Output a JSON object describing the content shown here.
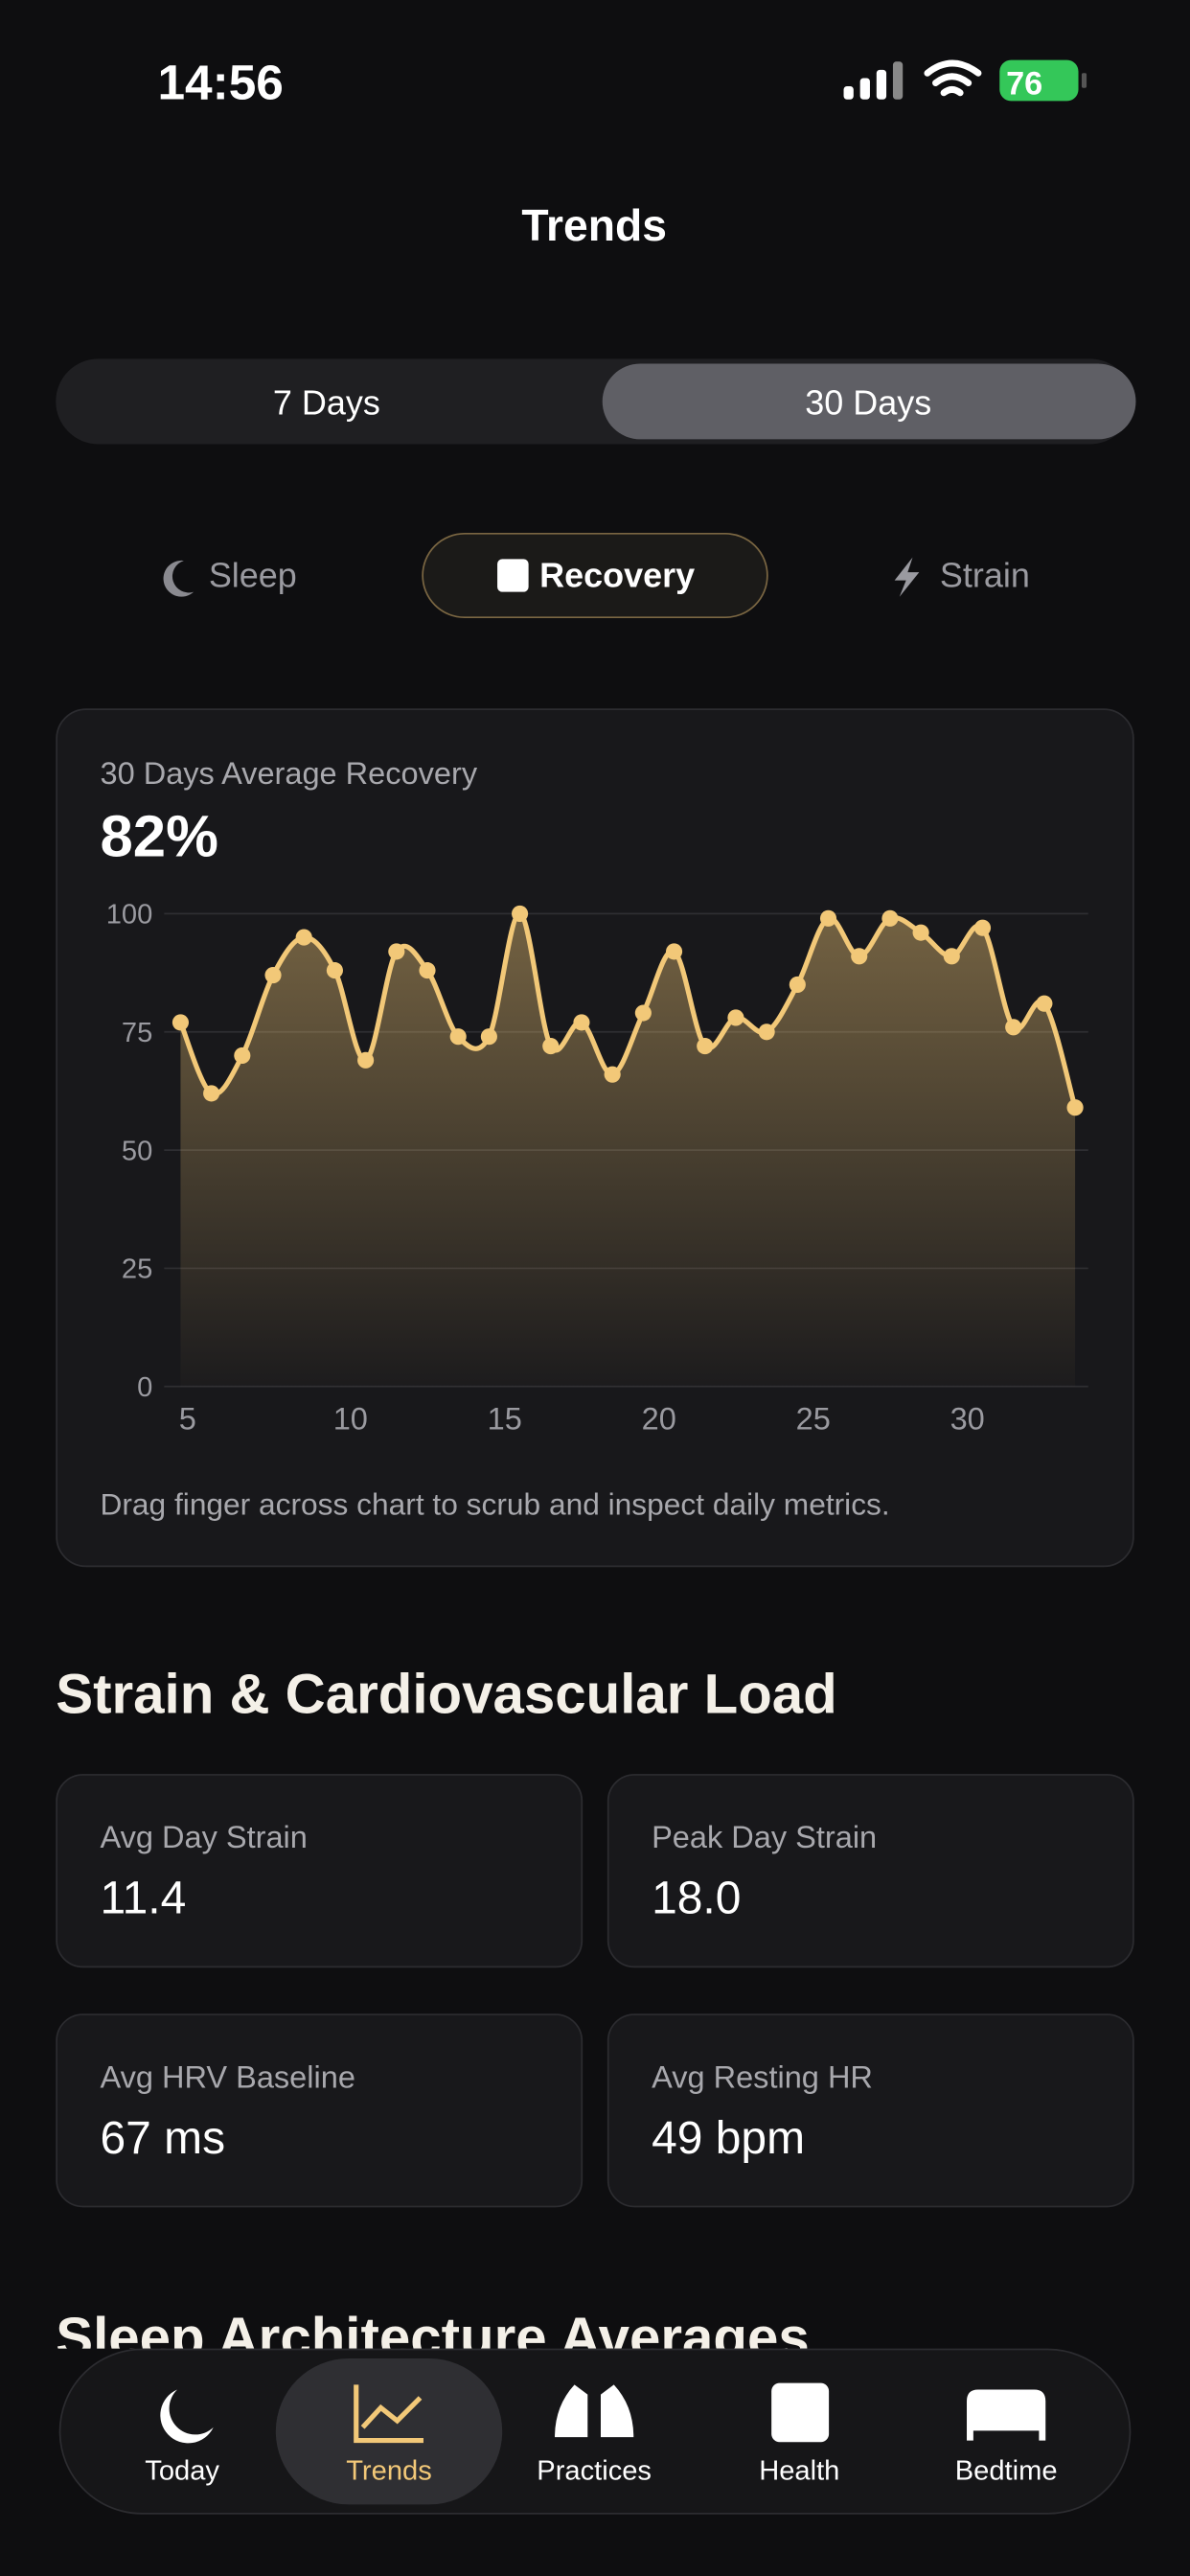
{
  "status": {
    "time": "14:56",
    "battery": "76"
  },
  "header": {
    "title": "Trends"
  },
  "range_toggle": {
    "options": [
      "7 Days",
      "30 Days"
    ],
    "selected": 1
  },
  "metric_tabs": {
    "options": [
      "Sleep",
      "Recovery",
      "Strain"
    ],
    "selected": 1
  },
  "recovery_card": {
    "label": "30 Days Average Recovery",
    "value": "82%",
    "chart": {
      "type": "line",
      "color": "#f2c878",
      "grid": true,
      "x": [
        5,
        6,
        7,
        8,
        9,
        10,
        11,
        12,
        13,
        14,
        15,
        16,
        17,
        18,
        19,
        20,
        21,
        22,
        23,
        24,
        25,
        26,
        27,
        28,
        29,
        30,
        31,
        32,
        33,
        34
      ],
      "values": [
        77,
        62,
        70,
        87,
        95,
        88,
        69,
        92,
        88,
        74,
        74,
        100,
        72,
        77,
        66,
        79,
        92,
        72,
        78,
        75,
        85,
        99,
        91,
        99,
        96,
        91,
        97,
        76,
        81,
        59
      ],
      "xlim": [
        5,
        34
      ],
      "ylim": [
        0,
        100
      ],
      "xticks": [
        5,
        10,
        15,
        20,
        25,
        30
      ],
      "yticks": [
        0,
        25,
        50,
        75,
        100
      ]
    },
    "hint": "Drag finger across chart to scrub and inspect daily metrics."
  },
  "strain_section": {
    "title": "Strain & Cardiovascular Load",
    "stats": [
      {
        "label": "Avg Day Strain",
        "value": "11.4"
      },
      {
        "label": "Peak Day Strain",
        "value": "18.0"
      },
      {
        "label": "Avg HRV Baseline",
        "value": "67 ms"
      },
      {
        "label": "Avg Resting HR",
        "value": "49 bpm"
      }
    ]
  },
  "sleep_section": {
    "title": "Sleep Architecture Averages"
  },
  "nav": {
    "items": [
      "Today",
      "Trends",
      "Practices",
      "Health",
      "Bedtime"
    ],
    "selected": 1
  }
}
